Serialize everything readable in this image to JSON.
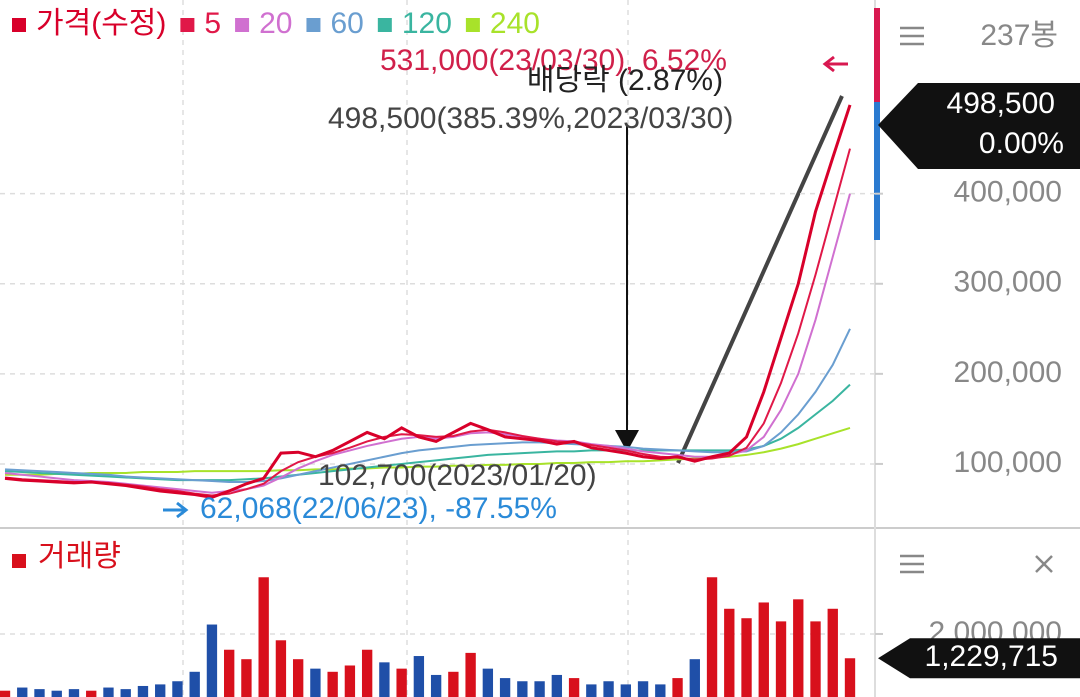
{
  "chart_data": [
    {
      "type": "line",
      "title": "가격(수정)",
      "count_label": "237봉",
      "series": [
        {
          "name": "가격(수정)",
          "color": "#d8002a",
          "values": [
            84000,
            82000,
            81000,
            80000,
            79000,
            80000,
            78000,
            76000,
            73000,
            70000,
            68000,
            66000,
            63000,
            70000,
            78000,
            84000,
            112000,
            113000,
            108000,
            115000,
            125000,
            135000,
            128000,
            140000,
            130000,
            125000,
            135000,
            145000,
            138000,
            130000,
            128000,
            126000,
            122000,
            125000,
            118000,
            115000,
            112000,
            108000,
            106000,
            108000,
            103000,
            108000,
            112000,
            130000,
            180000,
            240000,
            300000,
            380000,
            440000,
            498500
          ]
        },
        {
          "name": "5",
          "color": "#e01848",
          "values": [
            85000,
            83000,
            82000,
            81000,
            80000,
            80000,
            79000,
            77000,
            75000,
            72000,
            70000,
            67000,
            65000,
            67000,
            72000,
            78000,
            92000,
            102000,
            108000,
            112000,
            118000,
            125000,
            130000,
            133000,
            132000,
            130000,
            131000,
            136000,
            138000,
            135000,
            131000,
            128000,
            125000,
            124000,
            121000,
            118000,
            115000,
            111000,
            108000,
            107000,
            105000,
            106000,
            109000,
            118000,
            145000,
            190000,
            245000,
            310000,
            380000,
            450000
          ]
        },
        {
          "name": "20",
          "color": "#d070d0",
          "values": [
            90000,
            88000,
            86000,
            84000,
            82000,
            81000,
            80000,
            78000,
            76000,
            74000,
            72000,
            70000,
            68000,
            70000,
            72000,
            76000,
            85000,
            95000,
            103000,
            110000,
            115000,
            120000,
            124000,
            128000,
            130000,
            128000,
            130000,
            134000,
            135000,
            133000,
            130000,
            128000,
            126000,
            125000,
            122000,
            120000,
            117000,
            114000,
            112000,
            110000,
            108000,
            108000,
            110000,
            115000,
            130000,
            160000,
            200000,
            260000,
            330000,
            400000
          ]
        },
        {
          "name": "60",
          "color": "#6a9ed0",
          "values": [
            94000,
            93000,
            92000,
            91000,
            90000,
            89000,
            88000,
            86000,
            85000,
            84000,
            83000,
            82000,
            81000,
            80000,
            80000,
            81000,
            84000,
            88000,
            92000,
            96000,
            100000,
            104000,
            108000,
            112000,
            115000,
            117000,
            119000,
            121000,
            122000,
            123000,
            124000,
            124000,
            123000,
            122000,
            121000,
            120000,
            119000,
            117000,
            116000,
            115000,
            114000,
            113000,
            113000,
            114000,
            120000,
            135000,
            155000,
            180000,
            210000,
            250000
          ]
        },
        {
          "name": "120",
          "color": "#3ab5a0",
          "values": [
            92000,
            91000,
            90000,
            89000,
            88000,
            87000,
            86000,
            85000,
            84000,
            83000,
            82000,
            82000,
            82000,
            82000,
            83000,
            84000,
            86000,
            88000,
            90000,
            92000,
            94000,
            96000,
            98000,
            100000,
            102000,
            104000,
            106000,
            108000,
            110000,
            111000,
            112000,
            113000,
            114000,
            114000,
            115000,
            115000,
            115000,
            115000,
            115000,
            115000,
            115000,
            115000,
            115000,
            116000,
            120000,
            128000,
            140000,
            155000,
            170000,
            188000
          ]
        },
        {
          "name": "240",
          "color": "#a8e22a",
          "values": [
            88000,
            88000,
            88000,
            89000,
            89000,
            90000,
            90000,
            90000,
            91000,
            91000,
            91000,
            92000,
            92000,
            92000,
            92000,
            92000,
            93000,
            93000,
            94000,
            94000,
            95000,
            95000,
            96000,
            96000,
            97000,
            97000,
            98000,
            98000,
            99000,
            99000,
            100000,
            100000,
            101000,
            101000,
            102000,
            102000,
            103000,
            103000,
            104000,
            105000,
            106000,
            107000,
            108000,
            110000,
            113000,
            117000,
            122000,
            128000,
            134000,
            140000
          ]
        }
      ],
      "ylim": [
        30000,
        615000
      ],
      "yticks": [
        {
          "value": 100000,
          "label": "100,000"
        },
        {
          "value": 200000,
          "label": "200,000"
        },
        {
          "value": 300000,
          "label": "300,000"
        },
        {
          "value": 400000,
          "label": "400,000"
        }
      ],
      "grid": true,
      "current": {
        "value": 498500,
        "label": "498,500",
        "change": "0.00%"
      },
      "annotations": [
        "531,000(23/03/30), 6.52%",
        "배당락 (2.87%)",
        "498,500(385.39%,2023/03/30)",
        "102,700(2023/01/20)",
        "62,068(22/06/23), -87.55%"
      ]
    },
    {
      "type": "bar",
      "title": "거래량",
      "values": [
        200000,
        300000,
        250000,
        200000,
        250000,
        200000,
        300000,
        250000,
        350000,
        400000,
        500000,
        800000,
        2300000,
        1500000,
        1200000,
        3800000,
        1800000,
        1200000,
        900000,
        800000,
        1000000,
        1500000,
        1100000,
        900000,
        1300000,
        700000,
        800000,
        1400000,
        900000,
        600000,
        500000,
        500000,
        700000,
        600000,
        400000,
        500000,
        400000,
        500000,
        400000,
        600000,
        1200000,
        3800000,
        2800000,
        2500000,
        3000000,
        2400000,
        3100000,
        2400000,
        2800000,
        1229715
      ],
      "up_color": "#d8101c",
      "down_color": "#1f4fa8",
      "ylim": [
        0,
        5300000
      ],
      "yticks": [
        {
          "value": 2000000,
          "label": "2,000,000"
        }
      ],
      "current": {
        "value": 1229715,
        "label": "1,229,715"
      }
    }
  ]
}
